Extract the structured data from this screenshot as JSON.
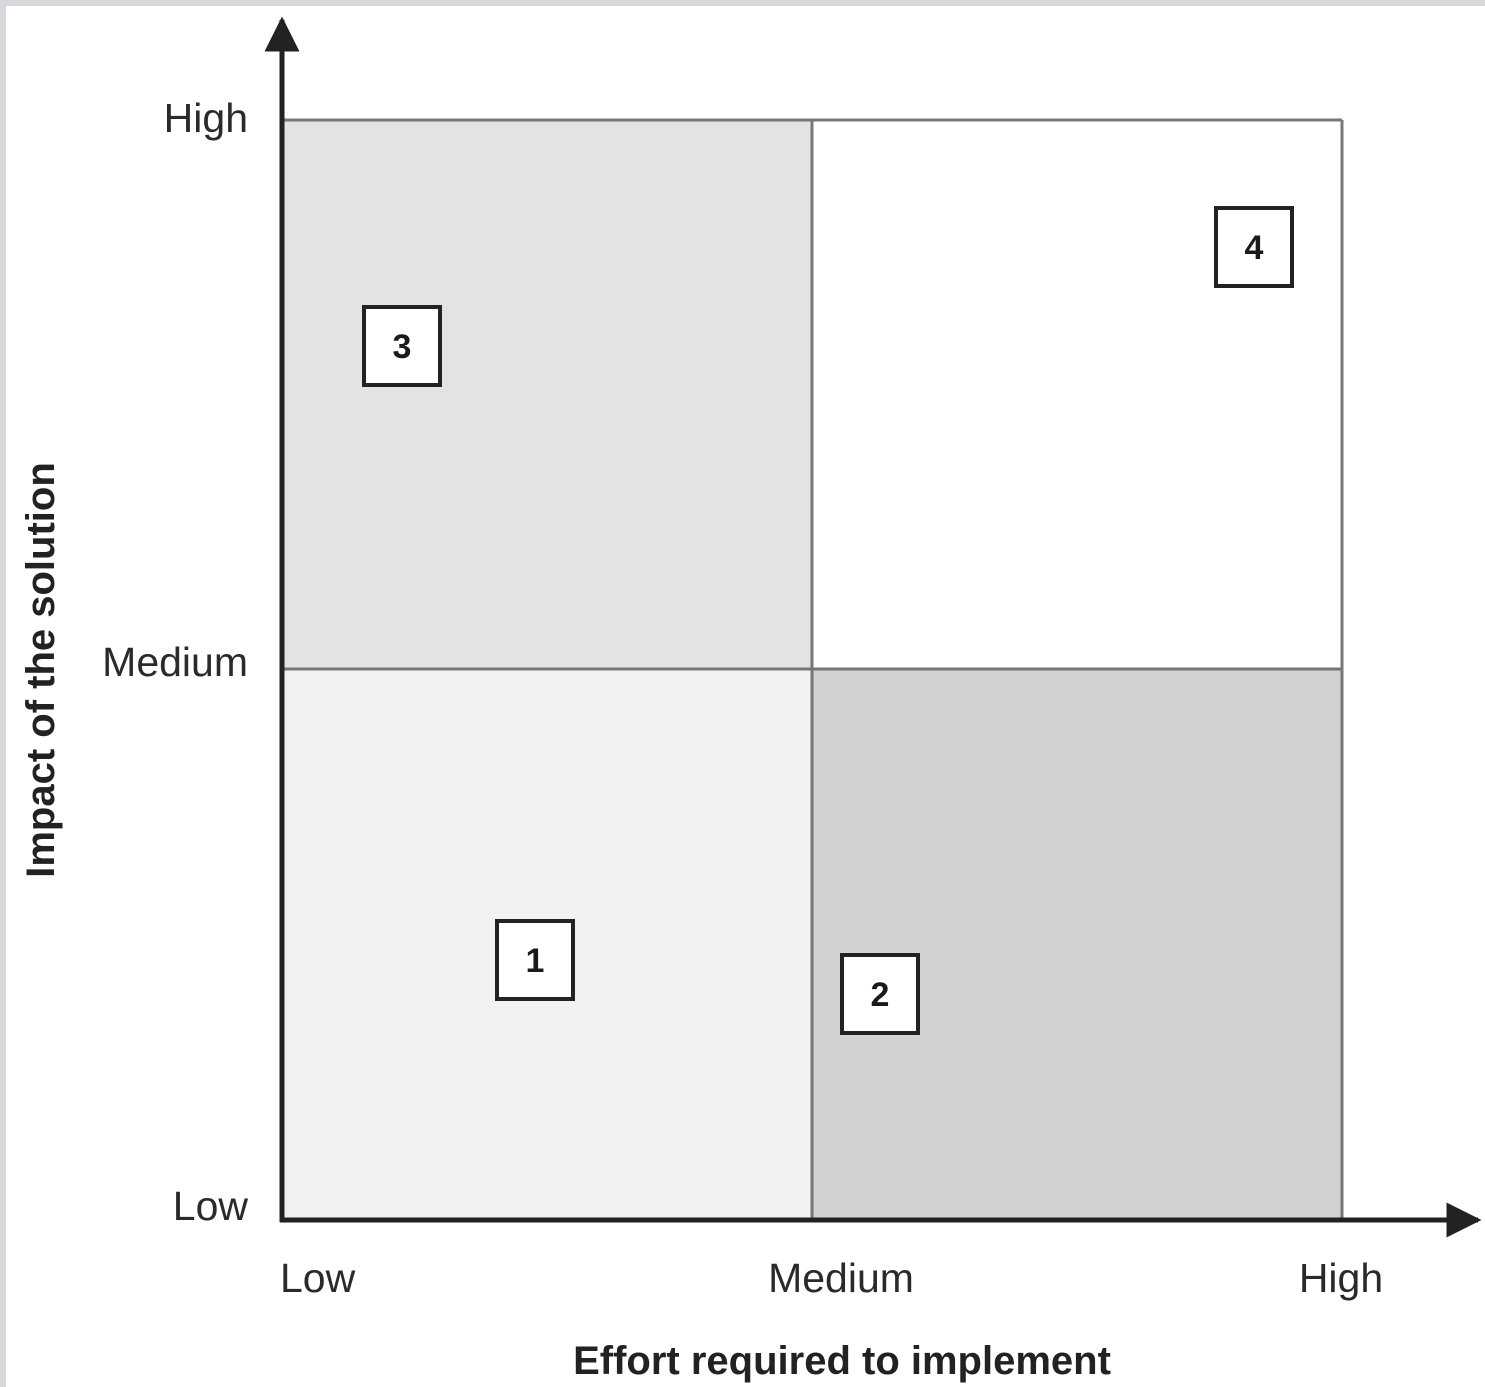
{
  "diagram": {
    "x_axis": {
      "title": "Effort required to implement",
      "ticks": [
        "Low",
        "Medium",
        "High"
      ]
    },
    "y_axis": {
      "title": "Impact of the solution",
      "ticks": [
        "Low",
        "Medium",
        "High"
      ]
    },
    "quadrants": [
      {
        "effort": "low",
        "impact": "low",
        "color": "#f2f2f3"
      },
      {
        "effort": "high",
        "impact": "low",
        "color": "#d2d2d4"
      },
      {
        "effort": "low",
        "impact": "high",
        "color": "#e3e3e5"
      },
      {
        "effort": "high",
        "impact": "high",
        "color": "#ffffff"
      }
    ],
    "markers": [
      {
        "label": "1",
        "quadrant": "low-effort-low-impact"
      },
      {
        "label": "2",
        "quadrant": "high-effort-low-impact"
      },
      {
        "label": "3",
        "quadrant": "low-effort-high-impact"
      },
      {
        "label": "4",
        "quadrant": "high-effort-high-impact"
      }
    ]
  }
}
